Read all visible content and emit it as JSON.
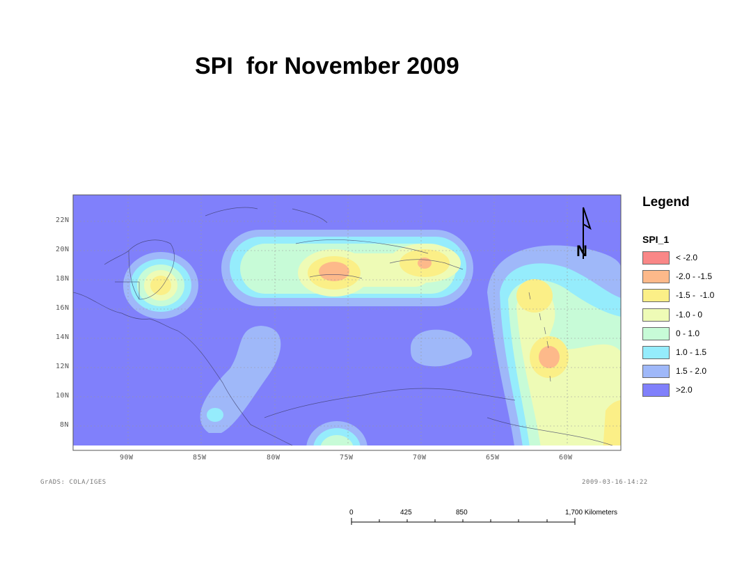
{
  "title": "SPI  for November 2009",
  "map": {
    "lat_ticks": [
      "22N",
      "20N",
      "18N",
      "16N",
      "14N",
      "12N",
      "10N",
      "8N"
    ],
    "lon_ticks": [
      "90W",
      "85W",
      "80W",
      "75W",
      "70W",
      "65W",
      "60W"
    ],
    "credit_left": "GrADS: COLA/IGES",
    "credit_right": "2009-03-16-14:22"
  },
  "legend": {
    "title": "Legend",
    "field": "SPI_1",
    "items": [
      {
        "label": "< -2.0",
        "color": "#f98787"
      },
      {
        "label": "-2.0 - -1.5",
        "color": "#fdb98a"
      },
      {
        "label": "-1.5 -  -1.0",
        "color": "#fbef87"
      },
      {
        "label": "-1.0 - 0",
        "color": "#eefbb6"
      },
      {
        "label": "0 - 1.0",
        "color": "#c7fbd7"
      },
      {
        "label": "1.0 - 1.5",
        "color": "#95ecfc"
      },
      {
        "label": "1.5 - 2.0",
        "color": "#9fb8f9"
      },
      {
        "label": ">2.0",
        "color": "#8080fb"
      }
    ]
  },
  "north_arrow": {
    "letter": "N"
  },
  "scale_bar": {
    "labels": [
      "0",
      "425",
      "850",
      "1,700 Kilometers"
    ]
  }
}
